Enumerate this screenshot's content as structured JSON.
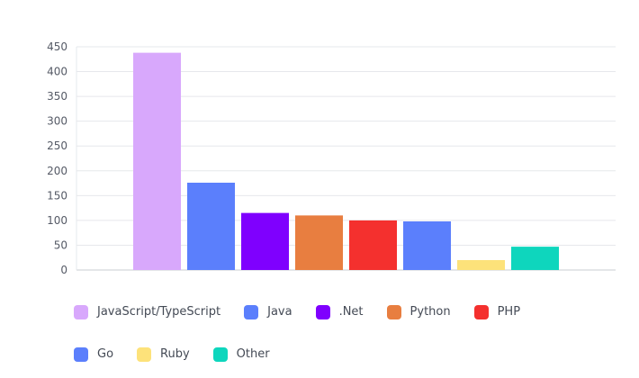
{
  "chart_data": {
    "type": "bar",
    "categories": [
      "JavaScript/TypeScript",
      "Java",
      ".Net",
      "Python",
      "PHP",
      "Go",
      "Ruby",
      "Other"
    ],
    "values": [
      438,
      176,
      115,
      110,
      100,
      98,
      20,
      47
    ],
    "colors": [
      "#d8a8fc",
      "#5b7ffc",
      "#7f00fe",
      "#e87e40",
      "#f4302e",
      "#5b7ffc",
      "#fde27a",
      "#0ed6bd"
    ],
    "yticks": [
      "0",
      "50",
      "100",
      "150",
      "200",
      "250",
      "300",
      "350",
      "400",
      "450"
    ],
    "ylim": [
      0,
      450
    ],
    "grid": true,
    "legend": "bottom"
  }
}
